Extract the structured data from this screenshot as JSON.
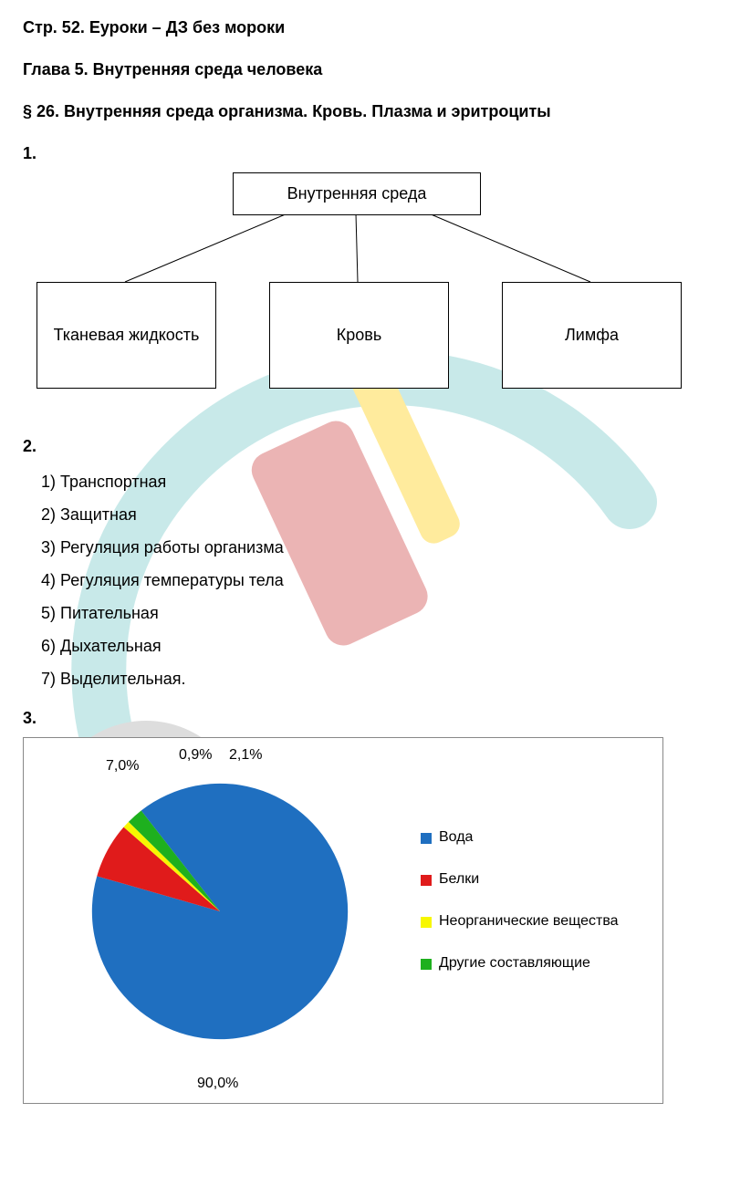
{
  "header": "Стр. 52. Еуроки – ДЗ без мороки",
  "chapter": "Глава 5. Внутренняя среда человека",
  "section": "§ 26. Внутренняя среда организма. Кровь. Плазма и эритроциты",
  "q1": {
    "num": "1.",
    "diagram": {
      "root": "Внутренняя среда",
      "children": [
        "Тканевая жидкость",
        "Кровь",
        "Лимфа"
      ],
      "line_color": "#000000"
    }
  },
  "q2": {
    "num": "2.",
    "items": [
      "1) Транспортная",
      "2) Защитная",
      "3) Регуляция работы организма",
      "4) Регуляция температуры тела",
      "5) Питательная",
      "6) Дыхательная",
      "7) Выделительная."
    ]
  },
  "q3": {
    "num": "3.",
    "pie": {
      "type": "pie",
      "slices": [
        {
          "label": "Вода",
          "value": 90.0,
          "display": "90,0%",
          "color": "#1f6fc0"
        },
        {
          "label": "Белки",
          "value": 7.0,
          "display": "7,0%",
          "color": "#e01b1b"
        },
        {
          "label": "Неорганические вещества",
          "value": 0.9,
          "display": "0,9%",
          "color": "#f7f700"
        },
        {
          "label": "Другие составляющие",
          "value": 2.1,
          "display": "2,1%",
          "color": "#1eb01e"
        }
      ],
      "start_angle_deg": -128,
      "border_color": "#888888",
      "background": "#ffffff",
      "label_fontsize": 16,
      "legend_marker": "square"
    }
  },
  "watermark": {
    "text": "euroki",
    "colors": {
      "circle": "#d8d8d8",
      "swoosh": "#bfe6e6",
      "red": "#e8a8a8",
      "yellow": "#ffe88c"
    }
  }
}
